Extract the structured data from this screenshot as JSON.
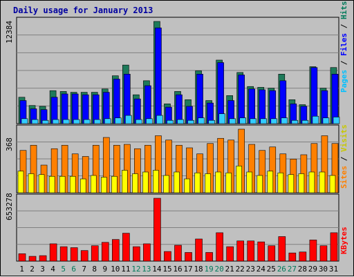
{
  "chart_data": {
    "type": "bar",
    "title": "Daily usage for January 2013",
    "categories": [
      "1",
      "2",
      "3",
      "4",
      "5",
      "6",
      "7",
      "8",
      "9",
      "10",
      "11",
      "12",
      "13",
      "14",
      "15",
      "16",
      "17",
      "18",
      "19",
      "20",
      "21",
      "22",
      "23",
      "24",
      "25",
      "26",
      "27",
      "28",
      "29",
      "30",
      "31"
    ],
    "weekend_days": [
      "5",
      "6",
      "12",
      "13",
      "19",
      "20",
      "26",
      "27"
    ],
    "colors": {
      "title": "#0000a0",
      "hits": "#1e7a5a",
      "files": "#0000ff",
      "pages": "#33ccff",
      "visits": "#ffff00",
      "sites": "#ff8000",
      "kbytes": "#ff0000",
      "weekend_label": "#007a5a",
      "weekday_label": "#000000"
    },
    "panels": [
      {
        "id": "hits-files-pages",
        "max_label": "12384",
        "ylim": [
          0,
          12384
        ],
        "legend": [
          {
            "text": "Pages",
            "color": "#00c0ff"
          },
          {
            "text": " / ",
            "color": "#000000"
          },
          {
            "text": "Files",
            "color": "#0000ff"
          },
          {
            "text": " / ",
            "color": "#000000"
          },
          {
            "text": "Hits",
            "color": "#007a5a"
          }
        ],
        "series": [
          {
            "name": "Hits",
            "color": "#1e7a5a",
            "values": [
              3200,
              2200,
              2100,
              4000,
              3900,
              3800,
              3800,
              3800,
              4200,
              5800,
              7100,
              3500,
              5200,
              12384,
              2400,
              3900,
              2900,
              6400,
              2800,
              7700,
              3400,
              6200,
              4500,
              4400,
              4300,
              6000,
              2900,
              2300,
              6900,
              4300,
              6800
            ]
          },
          {
            "name": "Files",
            "color": "#0000ff",
            "values": [
              2800,
              1800,
              1700,
              3200,
              3600,
              3600,
              3500,
              3500,
              3800,
              5400,
              6000,
              3000,
              4600,
              11600,
              2000,
              3500,
              2100,
              6000,
              2500,
              7400,
              2800,
              5900,
              4200,
              4100,
              4000,
              5200,
              2400,
              2100,
              6800,
              4000,
              6000
            ]
          },
          {
            "name": "Pages",
            "color": "#33ccff",
            "values": [
              600,
              500,
              400,
              500,
              500,
              500,
              500,
              500,
              600,
              700,
              1000,
              500,
              600,
              1000,
              400,
              500,
              400,
              700,
              400,
              1200,
              600,
              700,
              600,
              600,
              600,
              700,
              400,
              400,
              900,
              700,
              800
            ]
          }
        ]
      },
      {
        "id": "sites-visits",
        "max_label": "368",
        "ylim": [
          0,
          368
        ],
        "legend": [
          {
            "text": "Sites",
            "color": "#ff8000"
          },
          {
            "text": " / ",
            "color": "#000000"
          },
          {
            "text": "Visits",
            "color": "#c8c800"
          }
        ],
        "series": [
          {
            "name": "Sites",
            "color": "#ff8000",
            "values": [
              245,
              275,
              160,
              255,
              275,
              225,
              210,
              275,
              320,
              275,
              280,
              255,
              275,
              330,
              305,
              275,
              260,
              225,
              285,
              315,
              305,
              368,
              280,
              245,
              265,
              225,
              195,
              220,
              285,
              330,
              285
            ]
          },
          {
            "name": "Visits",
            "color": "#ffff00",
            "values": [
              125,
              110,
              105,
              95,
              95,
              95,
              80,
              100,
              90,
              95,
              130,
              110,
              120,
              130,
              100,
              120,
              80,
              115,
              110,
              120,
              115,
              155,
              120,
              100,
              125,
              115,
              105,
              110,
              120,
              120,
              100
            ]
          }
        ]
      },
      {
        "id": "kbytes",
        "max_label": "653278",
        "ylim": [
          0,
          653278
        ],
        "legend": [
          {
            "text": "KBytes",
            "color": "#ff0000"
          }
        ],
        "series": [
          {
            "name": "KBytes",
            "color": "#ff0000",
            "values": [
              77000,
              50000,
              57000,
              180000,
              150000,
              140000,
              110000,
              160000,
              195000,
              225000,
              290000,
              150000,
              180000,
              653278,
              100000,
              165000,
              90000,
              230000,
              90000,
              295000,
              150000,
              210000,
              210000,
              200000,
              160000,
              255000,
              85000,
              95000,
              220000,
              160000,
              295000
            ]
          }
        ]
      }
    ]
  }
}
